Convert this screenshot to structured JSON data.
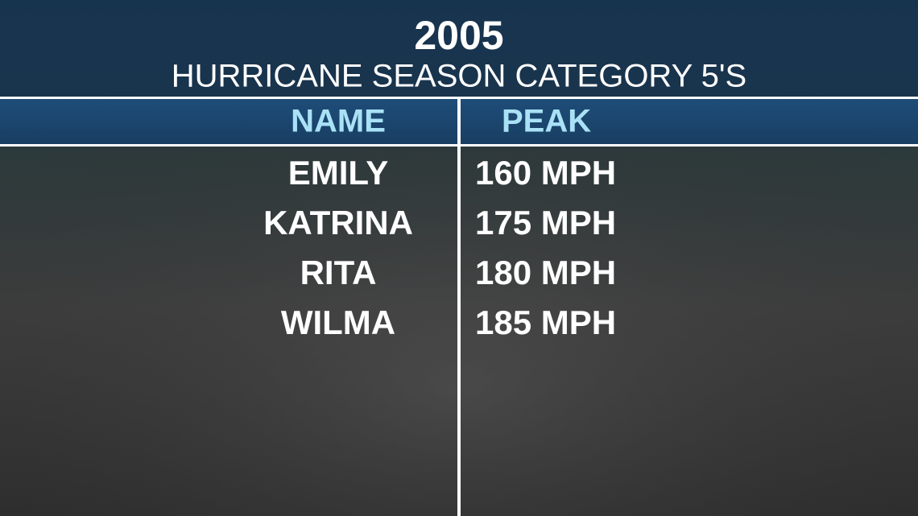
{
  "header": {
    "title": "2005",
    "subtitle": "HURRICANE SEASON CATEGORY 5'S"
  },
  "table": {
    "columns": [
      "NAME",
      "PEAK"
    ],
    "rows": [
      [
        "EMILY",
        "160 MPH"
      ],
      [
        "KATRINA",
        "175 MPH"
      ],
      [
        "RITA",
        "180 MPH"
      ],
      [
        "WILMA",
        "185 MPH"
      ]
    ]
  }
}
